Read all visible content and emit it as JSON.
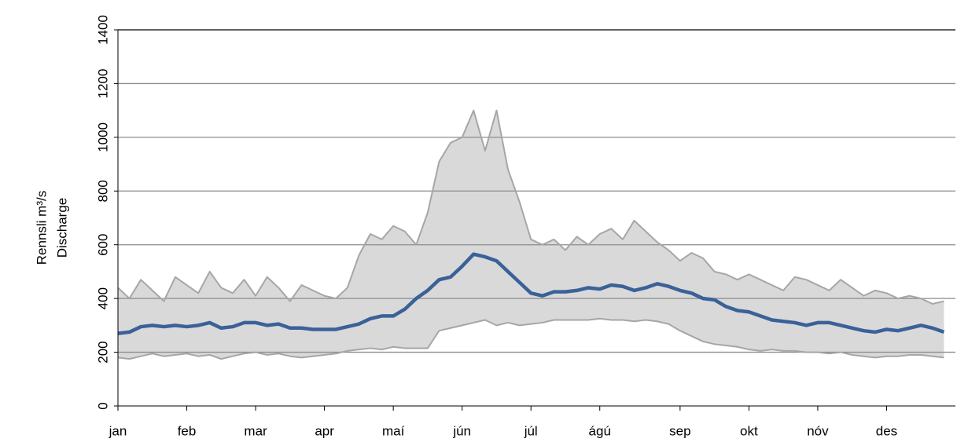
{
  "chart_data": {
    "type": "band-line",
    "ylabel": [
      "Rennsli m³/s",
      "Discharge"
    ],
    "categories": [
      "jan",
      null,
      null,
      null,
      null,
      null,
      "feb",
      null,
      null,
      null,
      null,
      null,
      "mar",
      null,
      null,
      null,
      null,
      null,
      "apr",
      null,
      null,
      null,
      null,
      null,
      "maí",
      null,
      null,
      null,
      null,
      null,
      "jún",
      null,
      null,
      null,
      null,
      null,
      "júl",
      null,
      null,
      null,
      null,
      null,
      "ágú",
      null,
      null,
      null,
      null,
      null,
      null,
      "sep",
      null,
      null,
      null,
      null,
      null,
      "okt",
      null,
      null,
      null,
      null,
      null,
      "nóv",
      null,
      null,
      null,
      null,
      null,
      "des",
      null,
      null,
      null,
      null,
      null
    ],
    "series": [
      {
        "color": "#a6a6a6",
        "values": [
          440,
          400,
          470,
          430,
          390,
          480,
          450,
          420,
          500,
          440,
          420,
          470,
          410,
          480,
          440,
          390,
          450,
          430,
          410,
          400,
          440,
          560,
          640,
          620,
          670,
          650,
          600,
          720,
          910,
          980,
          1000,
          1100,
          950,
          1100,
          880,
          760,
          620,
          600,
          620,
          580,
          630,
          600,
          640,
          660,
          620,
          690,
          650,
          610,
          580,
          540,
          570,
          550,
          500,
          490,
          470,
          490,
          470,
          450,
          430,
          480,
          470,
          450,
          430,
          470,
          440,
          410,
          430,
          420,
          400,
          410,
          400,
          380,
          390
        ]
      },
      {
        "color": "#3a6198",
        "values": [
          270,
          275,
          295,
          300,
          295,
          300,
          295,
          300,
          310,
          290,
          295,
          310,
          310,
          300,
          305,
          290,
          290,
          285,
          285,
          285,
          295,
          305,
          325,
          335,
          335,
          360,
          400,
          430,
          470,
          480,
          520,
          565,
          555,
          540,
          500,
          460,
          420,
          410,
          425,
          425,
          430,
          440,
          435,
          450,
          445,
          430,
          440,
          455,
          445,
          430,
          420,
          400,
          395,
          370,
          355,
          350,
          335,
          320,
          315,
          310,
          300,
          310,
          310,
          300,
          290,
          280,
          275,
          285,
          280,
          290,
          300,
          290,
          275
        ]
      },
      {
        "color": "#a6a6a6",
        "values": [
          180,
          175,
          185,
          195,
          185,
          190,
          195,
          185,
          190,
          175,
          185,
          195,
          200,
          190,
          195,
          185,
          180,
          185,
          190,
          195,
          205,
          210,
          215,
          210,
          220,
          215,
          215,
          215,
          280,
          290,
          300,
          310,
          320,
          300,
          310,
          300,
          305,
          310,
          320,
          320,
          320,
          320,
          325,
          320,
          320,
          315,
          320,
          315,
          305,
          280,
          260,
          240,
          230,
          225,
          220,
          210,
          205,
          210,
          205,
          205,
          200,
          200,
          195,
          200,
          190,
          185,
          180,
          185,
          185,
          190,
          190,
          185,
          180
        ]
      }
    ],
    "band_color": "#d9d9d9",
    "ylim": [
      0,
      1400
    ],
    "yticks": [
      0,
      200,
      400,
      600,
      800,
      1000,
      1200,
      1400
    ],
    "grid": true
  }
}
